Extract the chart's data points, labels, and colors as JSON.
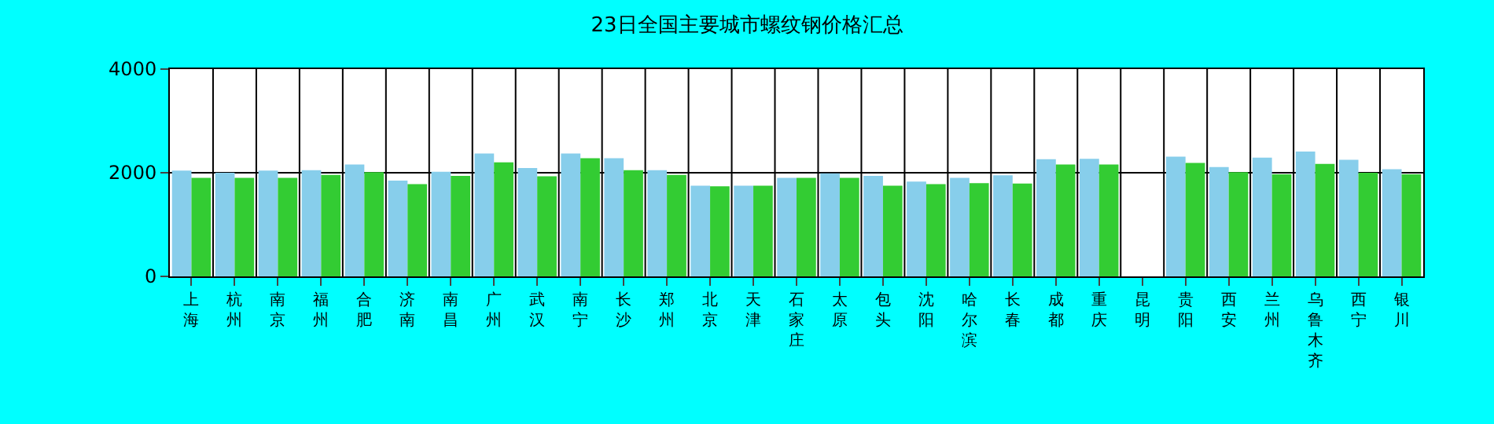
{
  "chart_data": {
    "type": "bar",
    "title": "23日全国主要城市螺纹钢价格汇总",
    "categories": [
      "上海",
      "杭州",
      "南京",
      "福州",
      "合肥",
      "济南",
      "南昌",
      "广州",
      "武汉",
      "南宁",
      "长沙",
      "郑州",
      "北京",
      "天津",
      "石家庄",
      "太原",
      "包头",
      "沈阳",
      "哈尔滨",
      "长春",
      "成都",
      "重庆",
      "昆明",
      "贵阳",
      "西安",
      "兰州",
      "乌鲁木齐",
      "西宁",
      "银川"
    ],
    "series": [
      {
        "color": "#87ceeb",
        "values": [
          2040,
          2000,
          2040,
          2050,
          2160,
          1850,
          2020,
          2370,
          2090,
          2370,
          2280,
          2050,
          1750,
          1750,
          1900,
          1990,
          1940,
          1830,
          1900,
          1950,
          2260,
          2270,
          null,
          2310,
          2110,
          2290,
          2410,
          2250,
          2070
        ]
      },
      {
        "color": "#33cc33",
        "values": [
          1900,
          1900,
          1900,
          1960,
          2010,
          1780,
          1940,
          2200,
          1930,
          2280,
          2050,
          1960,
          1740,
          1750,
          1900,
          1900,
          1750,
          1780,
          1800,
          1790,
          2160,
          2160,
          null,
          2190,
          2010,
          1970,
          2170,
          2000,
          1970
        ]
      }
    ],
    "ylim": [
      0,
      4000
    ],
    "yticks": [
      0,
      2000,
      4000
    ],
    "grid": true
  }
}
